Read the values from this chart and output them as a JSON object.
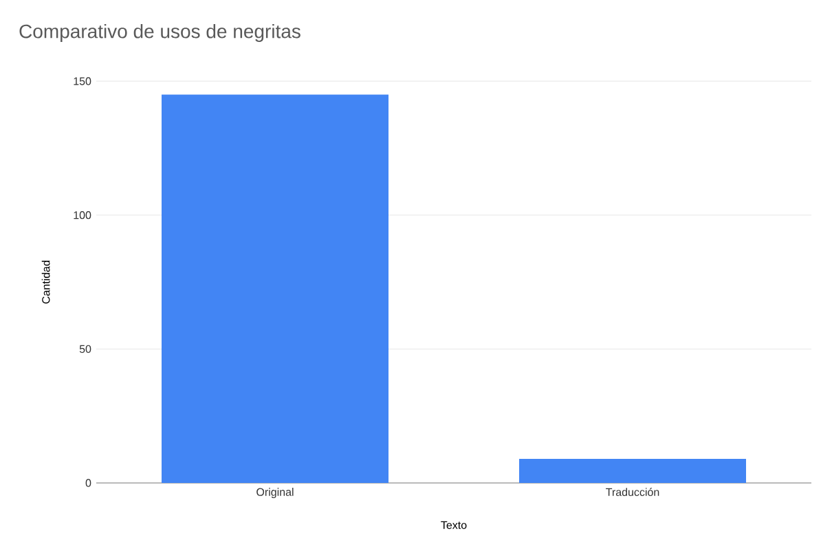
{
  "chart_data": {
    "type": "bar",
    "title": "Comparativo de usos de negritas",
    "xlabel": "Texto",
    "ylabel": "Cantidad",
    "categories": [
      "Original",
      "Traducción"
    ],
    "values": [
      145,
      9
    ],
    "color": "#4285f4",
    "ylim": [
      0,
      150
    ],
    "yticks": [
      0,
      50,
      100,
      150
    ],
    "grid": "y"
  }
}
